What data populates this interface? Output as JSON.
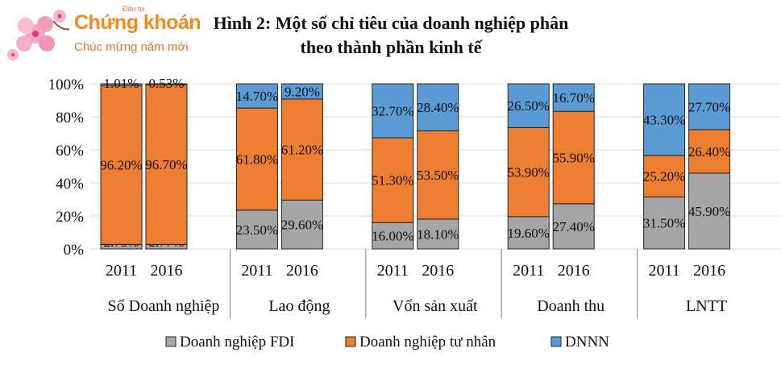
{
  "logo": {
    "small_text": "Đầu tư",
    "brand": "Chứng khoán",
    "tagline": "Chúc mừng năm mới"
  },
  "chart_data": {
    "type": "bar",
    "stacked": true,
    "title_line1": "Hình 2: Một số chỉ tiêu của doanh nghiệp phân",
    "title_line2": "theo thành phần kinh tế",
    "groups": [
      "Số Doanh nghiệp",
      "Lao động",
      "Vốn sản xuất",
      "Doanh thu",
      "LNTT"
    ],
    "years": [
      "2011",
      "2016"
    ],
    "y_ticks": [
      "0%",
      "20%",
      "40%",
      "60%",
      "80%",
      "100%"
    ],
    "ylim": [
      0,
      100
    ],
    "grid": true,
    "legend_position": "bottom",
    "series": [
      {
        "name": "Doanh nghiệp FDI",
        "color": "#a5a5a5",
        "values": [
          2.79,
          2.77,
          23.5,
          29.6,
          16.0,
          18.1,
          19.6,
          27.4,
          31.5,
          45.9
        ],
        "labels": [
          "2.79%",
          "2.77%",
          "23.50%",
          "29.60%",
          "16.00%",
          "18.10%",
          "19.60%",
          "27.40%",
          "31.50%",
          "45.90%"
        ]
      },
      {
        "name": "Doanh nghiệp tư nhân",
        "color": "#ed7d31",
        "values": [
          96.2,
          96.7,
          61.8,
          61.2,
          51.3,
          53.5,
          53.9,
          55.9,
          25.2,
          26.4
        ],
        "labels": [
          "96.20%",
          "96.70%",
          "61.80%",
          "61.20%",
          "51.30%",
          "53.50%",
          "53.90%",
          "55.90%",
          "25.20%",
          "26.40%"
        ]
      },
      {
        "name": "DNNN",
        "color": "#5b9bd5",
        "values": [
          1.01,
          0.53,
          14.7,
          9.2,
          32.7,
          28.4,
          26.5,
          16.7,
          43.3,
          27.7
        ],
        "labels": [
          "1.01%",
          "0.53%",
          "14.70%",
          "9.20%",
          "32.70%",
          "28.40%",
          "26.50%",
          "16.70%",
          "43.30%",
          "27.70%"
        ]
      }
    ]
  }
}
